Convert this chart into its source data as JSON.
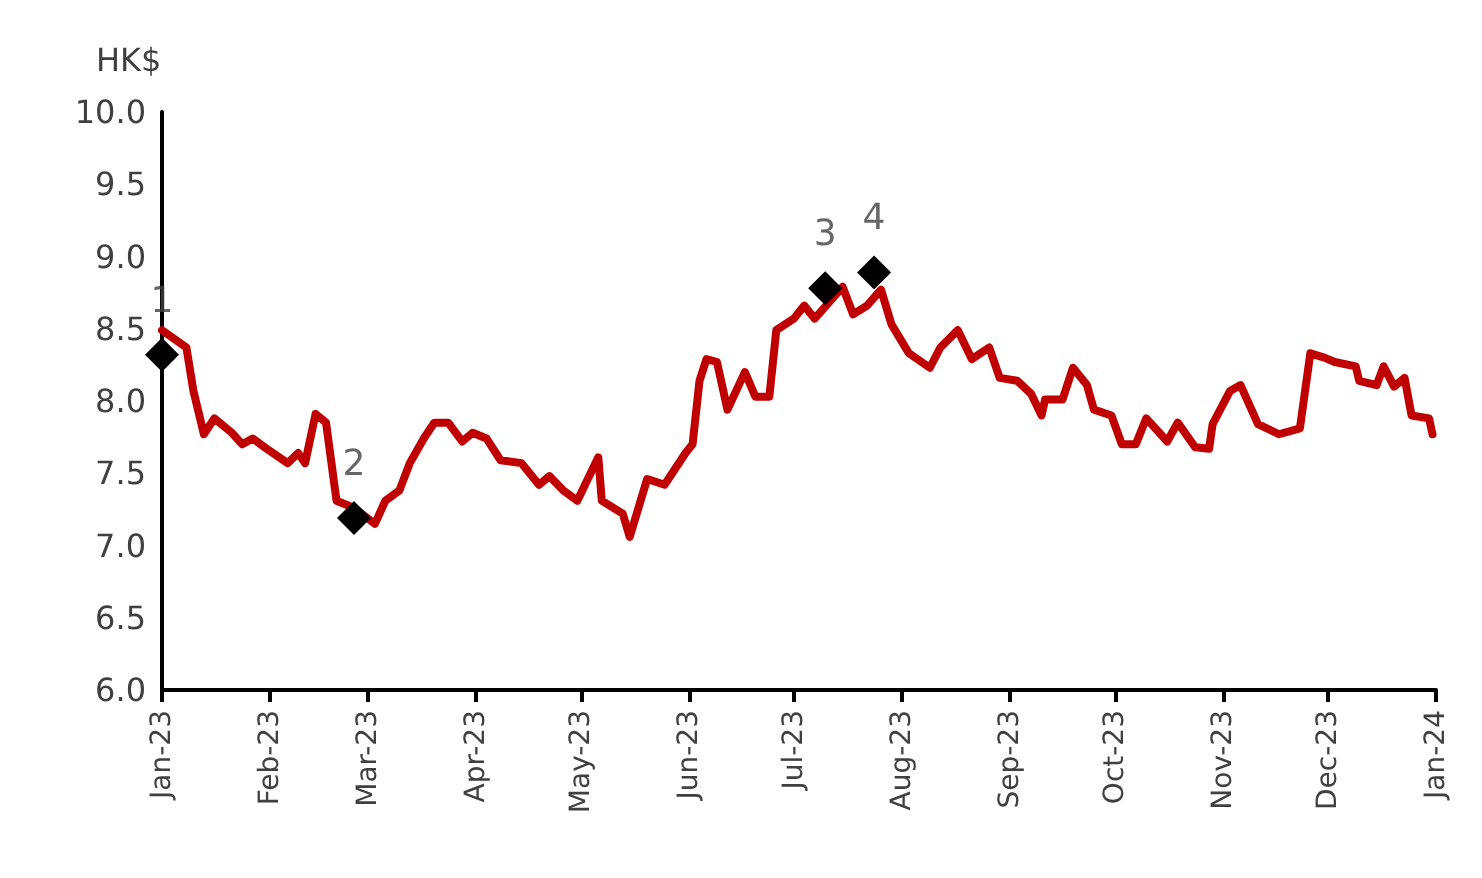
{
  "chart_data": {
    "type": "line",
    "ylabel": "HK$",
    "xlim": [
      "2023-01-01",
      "2024-01-01"
    ],
    "ylim": [
      6,
      10
    ],
    "yticks": [
      {
        "value": 6,
        "label": "6.0"
      },
      {
        "value": 6.5,
        "label": "6.5"
      },
      {
        "value": 7,
        "label": "7.0"
      },
      {
        "value": 7.5,
        "label": "7.5"
      },
      {
        "value": 8,
        "label": "8.0"
      },
      {
        "value": 8.5,
        "label": "8.5"
      },
      {
        "value": 9,
        "label": "9.0"
      },
      {
        "value": 9.5,
        "label": "9.5"
      },
      {
        "value": 10,
        "label": "10.0"
      }
    ],
    "xticks": [
      {
        "value": "2023-01-01",
        "label": "Jan-23"
      },
      {
        "value": "2023-02-01",
        "label": "Feb-23"
      },
      {
        "value": "2023-03-01",
        "label": "Mar-23"
      },
      {
        "value": "2023-04-01",
        "label": "Apr-23"
      },
      {
        "value": "2023-05-01",
        "label": "May-23"
      },
      {
        "value": "2023-06-01",
        "label": "Jun-23"
      },
      {
        "value": "2023-07-01",
        "label": "Jul-23"
      },
      {
        "value": "2023-08-01",
        "label": "Aug-23"
      },
      {
        "value": "2023-09-01",
        "label": "Sep-23"
      },
      {
        "value": "2023-10-01",
        "label": "Oct-23"
      },
      {
        "value": "2023-11-01",
        "label": "Nov-23"
      },
      {
        "value": "2023-12-01",
        "label": "Dec-23"
      },
      {
        "value": "2024-01-01",
        "label": "Jan-24"
      }
    ],
    "grid": false,
    "series": [
      {
        "color": "#c00000",
        "marker": "none",
        "line_style": "solid",
        "x": [
          "2023-01-01",
          "2023-01-08",
          "2023-01-10",
          "2023-01-13",
          "2023-01-16",
          "2023-01-21",
          "2023-01-24",
          "2023-01-27",
          "2023-01-31",
          "2023-02-06",
          "2023-02-09",
          "2023-02-11",
          "2023-02-14",
          "2023-02-17",
          "2023-02-20",
          "2023-02-25",
          "2023-03-03",
          "2023-03-06",
          "2023-03-10",
          "2023-03-13",
          "2023-03-17",
          "2023-03-20",
          "2023-03-24",
          "2023-03-28",
          "2023-03-31",
          "2023-04-04",
          "2023-04-08",
          "2023-04-14",
          "2023-04-19",
          "2023-04-22",
          "2023-04-26",
          "2023-04-30",
          "2023-05-06",
          "2023-05-07",
          "2023-05-13",
          "2023-05-15",
          "2023-05-20",
          "2023-05-25",
          "2023-05-31",
          "2023-06-02",
          "2023-06-04",
          "2023-06-06",
          "2023-06-09",
          "2023-06-12",
          "2023-06-17",
          "2023-06-20",
          "2023-06-24",
          "2023-06-26",
          "2023-07-01",
          "2023-07-04",
          "2023-07-07",
          "2023-07-15",
          "2023-07-18",
          "2023-07-22",
          "2023-07-26",
          "2023-07-29",
          "2023-08-03",
          "2023-08-09",
          "2023-08-12",
          "2023-08-17",
          "2023-08-21",
          "2023-08-26",
          "2023-08-29",
          "2023-09-03",
          "2023-09-07",
          "2023-09-10",
          "2023-09-11",
          "2023-09-16",
          "2023-09-19",
          "2023-09-23",
          "2023-09-25",
          "2023-09-30",
          "2023-10-03",
          "2023-10-07",
          "2023-10-10",
          "2023-10-16",
          "2023-10-19",
          "2023-10-24",
          "2023-10-28",
          "2023-10-29",
          "2023-11-03",
          "2023-11-06",
          "2023-11-11",
          "2023-11-17",
          "2023-11-23",
          "2023-11-26",
          "2023-11-30",
          "2023-12-03",
          "2023-12-09",
          "2023-12-10",
          "2023-12-15",
          "2023-12-17",
          "2023-12-20",
          "2023-12-23",
          "2023-12-25",
          "2023-12-30",
          "2023-12-31"
        ],
        "values": [
          8.49,
          8.37,
          8.07,
          7.77,
          7.88,
          7.78,
          7.7,
          7.74,
          7.67,
          7.57,
          7.64,
          7.57,
          7.91,
          7.85,
          7.31,
          7.26,
          7.15,
          7.31,
          7.38,
          7.57,
          7.74,
          7.85,
          7.85,
          7.72,
          7.78,
          7.74,
          7.59,
          7.57,
          7.42,
          7.48,
          7.38,
          7.31,
          7.61,
          7.31,
          7.22,
          7.06,
          7.46,
          7.42,
          7.64,
          7.7,
          8.14,
          8.29,
          8.27,
          7.94,
          8.2,
          8.03,
          8.03,
          8.49,
          8.57,
          8.66,
          8.57,
          8.79,
          8.6,
          8.66,
          8.77,
          8.53,
          8.33,
          8.23,
          8.37,
          8.49,
          8.29,
          8.37,
          8.16,
          8.14,
          8.05,
          7.9,
          8.01,
          8.01,
          8.23,
          8.11,
          7.94,
          7.9,
          7.7,
          7.7,
          7.88,
          7.72,
          7.85,
          7.68,
          7.67,
          7.84,
          8.07,
          8.11,
          7.84,
          7.77,
          7.81,
          8.33,
          8.3,
          8.27,
          8.24,
          8.14,
          8.11,
          8.24,
          8.1,
          8.16,
          7.9,
          7.88,
          7.77
        ]
      },
      {
        "type": "scatter",
        "color": "#000000",
        "marker": "diamond",
        "x": [
          "2023-01-01",
          "2023-02-25",
          "2023-07-10",
          "2023-07-24"
        ],
        "values": [
          8.32,
          7.19,
          8.78,
          8.89
        ]
      }
    ],
    "annotations": [
      {
        "text": "1",
        "x": "2023-01-01",
        "y": 8.32
      },
      {
        "text": "2",
        "x": "2023-02-25",
        "y": 7.19
      },
      {
        "text": "3",
        "x": "2023-07-10",
        "y": 8.78
      },
      {
        "text": "4",
        "x": "2023-07-24",
        "y": 8.89
      }
    ]
  }
}
